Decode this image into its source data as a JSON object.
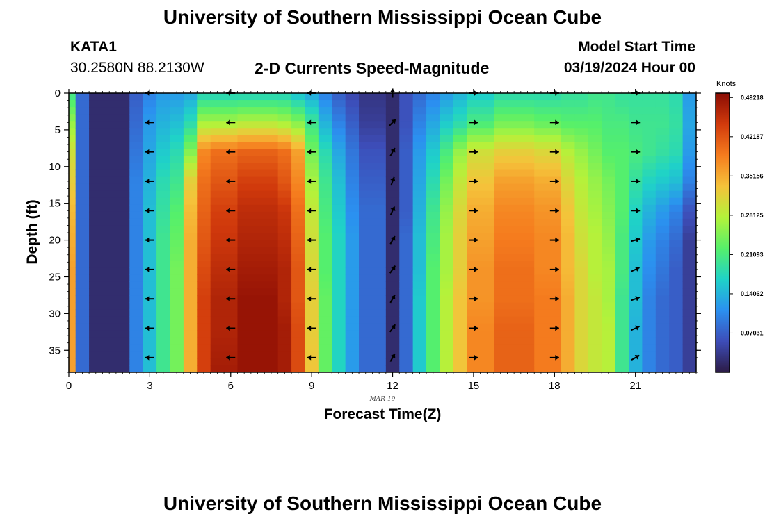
{
  "header": {
    "title": "University of Southern Mississippi Ocean Cube",
    "station_id": "KATA1",
    "station_coords": "30.2580N  88.2130W",
    "product": "2-D Currents Speed-Magnitude",
    "model_start_label": "Model Start Time",
    "model_start_value": "03/19/2024 Hour 00"
  },
  "footer": {
    "title": "University of Southern Mississippi Ocean Cube"
  },
  "colors": {
    "arrow": "#000000",
    "frame": "#000000"
  },
  "chart_data": {
    "type": "heatmap",
    "title": "2-D Currents Speed-Magnitude",
    "xlabel": "Forecast Time(Z)",
    "ylabel": "Depth (ft)",
    "date_label": "MAR 19",
    "xlim": [
      0,
      23.25
    ],
    "ylim": [
      0,
      38
    ],
    "x_ticks": [
      0,
      3,
      6,
      9,
      12,
      15,
      18,
      21
    ],
    "y_ticks": [
      0,
      5,
      10,
      15,
      20,
      25,
      30,
      35
    ],
    "colorbar": {
      "label": "Knots",
      "ticks": [
        "0.49218",
        "0.42187",
        "0.35156",
        "0.28125",
        "0.21093",
        "0.14062",
        "0.07031"
      ],
      "min": 0,
      "max": 0.5,
      "colors": [
        "#2c1b45",
        "#3d4db8",
        "#2b90f0",
        "#1fd2c8",
        "#56f06a",
        "#b4f23a",
        "#f5c23a",
        "#f57c1e",
        "#d13a0c",
        "#8a0c04"
      ]
    },
    "columns": [
      {
        "x0": 0.0,
        "x1": 0.25,
        "profile": [
          0.2,
          0.26,
          0.3,
          0.32,
          0.34,
          0.35,
          0.36,
          0.36,
          0.36,
          0.36
        ]
      },
      {
        "x0": 0.25,
        "x1": 0.75,
        "profile": [
          0.08,
          0.08,
          0.08,
          0.08,
          0.08,
          0.08,
          0.08,
          0.08,
          0.08,
          0.08
        ]
      },
      {
        "x0": 0.75,
        "x1": 2.25,
        "profile": [
          0.02,
          0.02,
          0.02,
          0.02,
          0.02,
          0.02,
          0.02,
          0.02,
          0.02,
          0.02
        ]
      },
      {
        "x0": 2.25,
        "x1": 2.75,
        "profile": [
          0.07,
          0.08,
          0.09,
          0.1,
          0.1,
          0.1,
          0.1,
          0.1,
          0.1,
          0.1
        ]
      },
      {
        "x0": 2.75,
        "x1": 3.25,
        "profile": [
          0.1,
          0.12,
          0.13,
          0.14,
          0.15,
          0.15,
          0.15,
          0.15,
          0.15,
          0.15
        ]
      },
      {
        "x0": 3.25,
        "x1": 3.75,
        "profile": [
          0.12,
          0.14,
          0.16,
          0.18,
          0.19,
          0.2,
          0.2,
          0.2,
          0.2,
          0.2
        ]
      },
      {
        "x0": 3.75,
        "x1": 4.25,
        "profile": [
          0.12,
          0.15,
          0.18,
          0.2,
          0.22,
          0.23,
          0.24,
          0.24,
          0.24,
          0.24
        ]
      },
      {
        "x0": 4.25,
        "x1": 4.75,
        "profile": [
          0.13,
          0.18,
          0.25,
          0.32,
          0.34,
          0.35,
          0.35,
          0.35,
          0.35,
          0.35
        ]
      },
      {
        "x0": 4.75,
        "x1": 5.25,
        "profile": [
          0.17,
          0.27,
          0.38,
          0.4,
          0.41,
          0.42,
          0.43,
          0.44,
          0.44,
          0.44
        ]
      },
      {
        "x0": 5.25,
        "x1": 6.25,
        "profile": [
          0.17,
          0.27,
          0.4,
          0.42,
          0.44,
          0.45,
          0.46,
          0.47,
          0.47,
          0.48
        ]
      },
      {
        "x0": 6.25,
        "x1": 7.75,
        "profile": [
          0.17,
          0.28,
          0.41,
          0.44,
          0.46,
          0.47,
          0.48,
          0.49,
          0.49,
          0.49
        ]
      },
      {
        "x0": 7.75,
        "x1": 8.25,
        "profile": [
          0.17,
          0.27,
          0.4,
          0.42,
          0.45,
          0.46,
          0.47,
          0.47,
          0.48,
          0.48
        ]
      },
      {
        "x0": 8.25,
        "x1": 8.75,
        "profile": [
          0.15,
          0.25,
          0.36,
          0.38,
          0.4,
          0.41,
          0.42,
          0.42,
          0.43,
          0.43
        ]
      },
      {
        "x0": 8.75,
        "x1": 9.25,
        "profile": [
          0.13,
          0.2,
          0.24,
          0.27,
          0.29,
          0.3,
          0.31,
          0.32,
          0.32,
          0.33
        ]
      },
      {
        "x0": 9.25,
        "x1": 9.75,
        "profile": [
          0.1,
          0.14,
          0.18,
          0.2,
          0.21,
          0.22,
          0.22,
          0.23,
          0.23,
          0.23
        ]
      },
      {
        "x0": 9.75,
        "x1": 10.25,
        "profile": [
          0.07,
          0.1,
          0.13,
          0.15,
          0.16,
          0.17,
          0.17,
          0.17,
          0.17,
          0.17
        ]
      },
      {
        "x0": 10.25,
        "x1": 10.75,
        "profile": [
          0.05,
          0.07,
          0.09,
          0.1,
          0.11,
          0.12,
          0.12,
          0.12,
          0.12,
          0.12
        ]
      },
      {
        "x0": 10.75,
        "x1": 11.75,
        "profile": [
          0.03,
          0.04,
          0.06,
          0.07,
          0.08,
          0.08,
          0.08,
          0.08,
          0.08,
          0.08
        ]
      },
      {
        "x0": 11.75,
        "x1": 12.25,
        "profile": [
          0.02,
          0.02,
          0.02,
          0.02,
          0.02,
          0.02,
          0.02,
          0.02,
          0.02,
          0.02
        ]
      },
      {
        "x0": 12.25,
        "x1": 12.75,
        "profile": [
          0.06,
          0.06,
          0.07,
          0.07,
          0.07,
          0.08,
          0.08,
          0.08,
          0.08,
          0.08
        ]
      },
      {
        "x0": 12.75,
        "x1": 13.25,
        "profile": [
          0.08,
          0.1,
          0.12,
          0.13,
          0.14,
          0.15,
          0.15,
          0.16,
          0.16,
          0.16
        ]
      },
      {
        "x0": 13.25,
        "x1": 13.75,
        "profile": [
          0.1,
          0.13,
          0.16,
          0.18,
          0.2,
          0.21,
          0.22,
          0.22,
          0.22,
          0.22
        ]
      },
      {
        "x0": 13.75,
        "x1": 14.25,
        "profile": [
          0.12,
          0.16,
          0.21,
          0.24,
          0.26,
          0.27,
          0.27,
          0.28,
          0.28,
          0.28
        ]
      },
      {
        "x0": 14.25,
        "x1": 14.75,
        "profile": [
          0.14,
          0.18,
          0.26,
          0.29,
          0.31,
          0.32,
          0.32,
          0.33,
          0.33,
          0.33
        ]
      },
      {
        "x0": 14.75,
        "x1": 15.75,
        "profile": [
          0.16,
          0.21,
          0.3,
          0.33,
          0.35,
          0.36,
          0.37,
          0.37,
          0.38,
          0.38
        ]
      },
      {
        "x0": 15.75,
        "x1": 17.25,
        "profile": [
          0.18,
          0.24,
          0.32,
          0.36,
          0.38,
          0.39,
          0.4,
          0.4,
          0.41,
          0.41
        ]
      },
      {
        "x0": 17.25,
        "x1": 18.25,
        "profile": [
          0.18,
          0.23,
          0.31,
          0.35,
          0.37,
          0.38,
          0.38,
          0.39,
          0.39,
          0.39
        ]
      },
      {
        "x0": 18.25,
        "x1": 18.75,
        "profile": [
          0.19,
          0.22,
          0.28,
          0.31,
          0.33,
          0.34,
          0.34,
          0.35,
          0.35,
          0.35
        ]
      },
      {
        "x0": 18.75,
        "x1": 19.25,
        "profile": [
          0.19,
          0.22,
          0.26,
          0.28,
          0.29,
          0.3,
          0.31,
          0.31,
          0.31,
          0.31
        ]
      },
      {
        "x0": 19.25,
        "x1": 19.75,
        "profile": [
          0.2,
          0.22,
          0.24,
          0.26,
          0.27,
          0.28,
          0.28,
          0.29,
          0.29,
          0.29
        ]
      },
      {
        "x0": 19.75,
        "x1": 20.25,
        "profile": [
          0.2,
          0.21,
          0.22,
          0.24,
          0.25,
          0.26,
          0.27,
          0.27,
          0.28,
          0.28
        ]
      },
      {
        "x0": 20.25,
        "x1": 20.75,
        "profile": [
          0.19,
          0.21,
          0.22,
          0.22,
          0.22,
          0.21,
          0.21,
          0.2,
          0.2,
          0.2
        ]
      },
      {
        "x0": 20.75,
        "x1": 21.25,
        "profile": [
          0.19,
          0.2,
          0.21,
          0.19,
          0.17,
          0.16,
          0.15,
          0.15,
          0.14,
          0.14
        ]
      },
      {
        "x0": 21.25,
        "x1": 21.75,
        "profile": [
          0.19,
          0.2,
          0.2,
          0.17,
          0.14,
          0.12,
          0.11,
          0.1,
          0.1,
          0.1
        ]
      },
      {
        "x0": 21.75,
        "x1": 22.25,
        "profile": [
          0.19,
          0.2,
          0.19,
          0.16,
          0.12,
          0.1,
          0.09,
          0.08,
          0.08,
          0.08
        ]
      },
      {
        "x0": 22.25,
        "x1": 22.75,
        "profile": [
          0.18,
          0.19,
          0.18,
          0.15,
          0.1,
          0.08,
          0.07,
          0.07,
          0.07,
          0.07
        ]
      },
      {
        "x0": 22.75,
        "x1": 23.25,
        "profile": [
          0.12,
          0.13,
          0.12,
          0.1,
          0.06,
          0.04,
          0.04,
          0.04,
          0.04,
          0.04
        ]
      }
    ],
    "profile_depths": [
      0,
      4,
      8,
      12,
      16,
      20,
      24,
      28,
      32,
      38
    ],
    "vector_depths": [
      0,
      4,
      8,
      12,
      16,
      20,
      24,
      28,
      32,
      36
    ],
    "vectors": [
      {
        "time": 3,
        "angles": [
          180,
          180,
          180,
          180,
          180,
          180,
          180,
          180,
          180,
          180
        ]
      },
      {
        "time": 6,
        "angles": [
          180,
          180,
          180,
          180,
          180,
          180,
          180,
          180,
          180,
          180
        ]
      },
      {
        "time": 9,
        "angles": [
          180,
          180,
          180,
          180,
          180,
          180,
          180,
          180,
          180,
          180
        ]
      },
      {
        "time": 12,
        "angles": [
          90,
          45,
          60,
          70,
          65,
          60,
          55,
          60,
          55,
          60
        ]
      },
      {
        "time": 15,
        "angles": [
          0,
          0,
          0,
          0,
          0,
          0,
          0,
          0,
          0,
          0
        ]
      },
      {
        "time": 18,
        "angles": [
          0,
          0,
          0,
          0,
          0,
          0,
          0,
          0,
          0,
          0
        ]
      },
      {
        "time": 21,
        "angles": [
          0,
          0,
          0,
          0,
          0,
          15,
          25,
          20,
          25,
          30
        ]
      }
    ]
  }
}
